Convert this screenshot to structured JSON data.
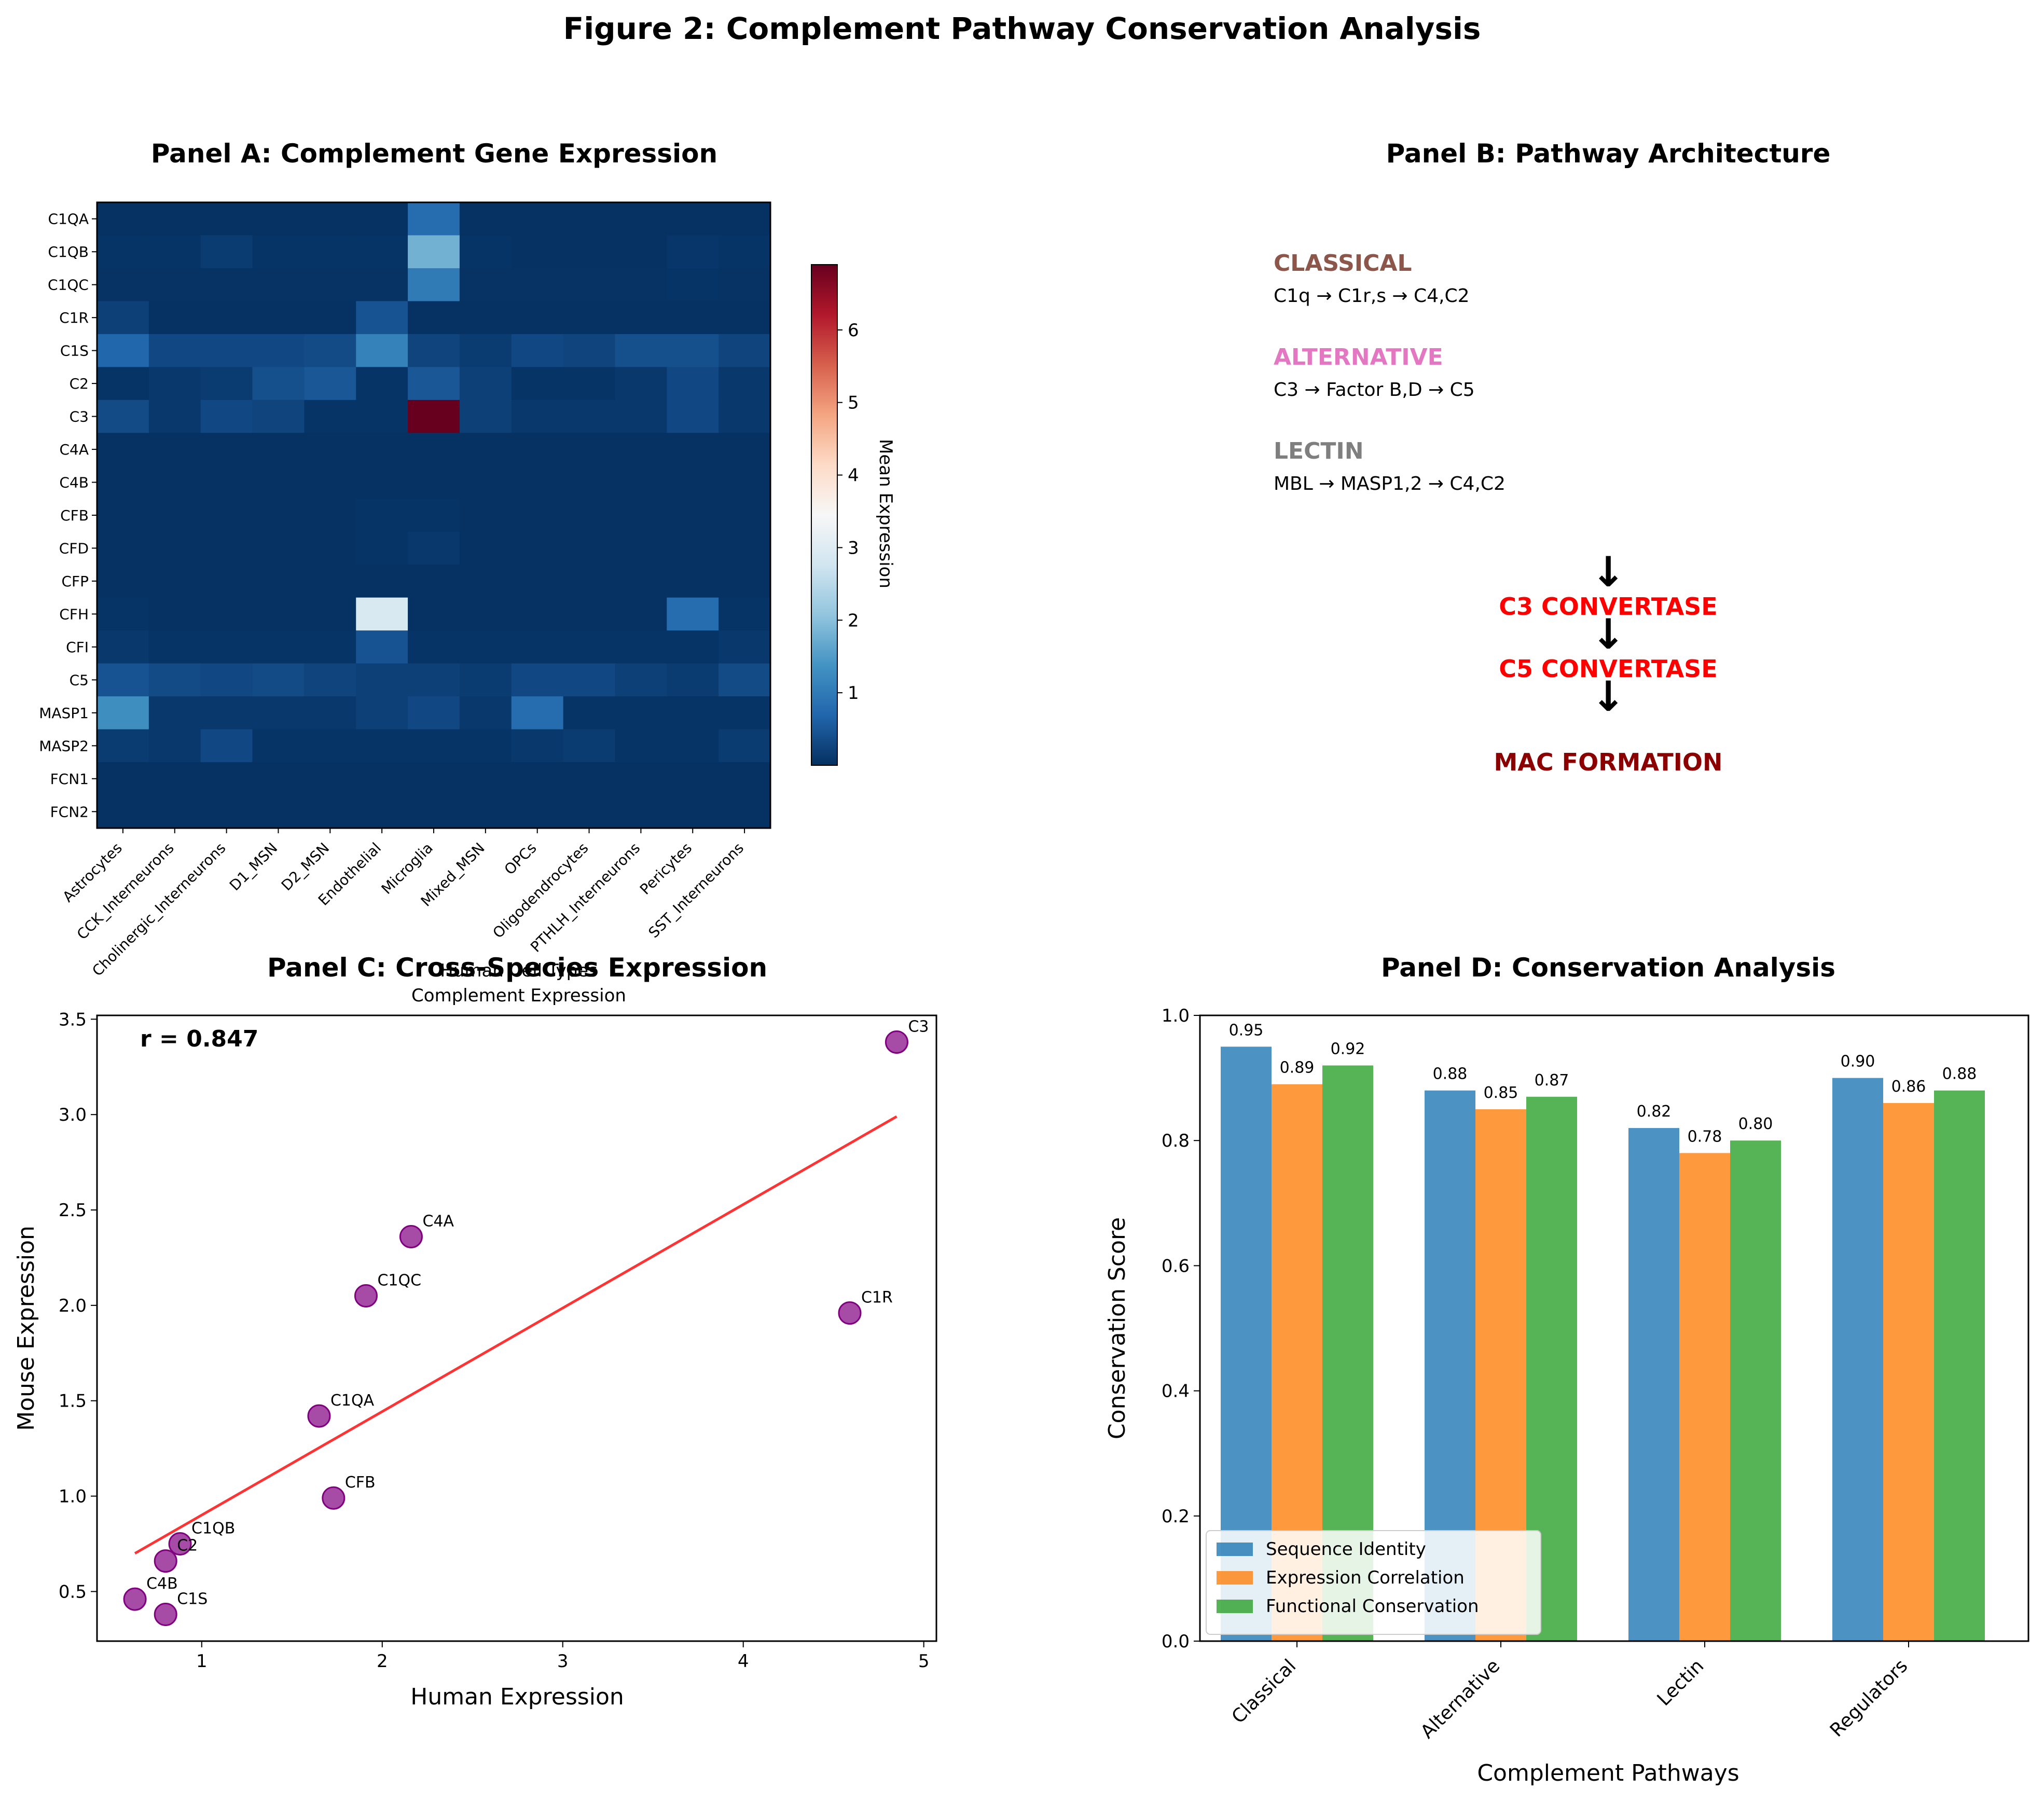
{
  "figure_title": "Figure 2: Complement Pathway Conservation Analysis",
  "panels": {
    "a": {
      "title": "Panel A: Complement Gene Expression",
      "xlabel_line1": "Human Cell Types",
      "xlabel_line2": "Complement Expression",
      "colorbar_label": "Mean Expression"
    },
    "b": {
      "title": "Panel B: Pathway Architecture",
      "classical_name": "CLASSICAL",
      "classical_steps": "C1q → C1r,s → C4,C2",
      "alternative_name": "ALTERNATIVE",
      "alternative_steps": "C3 → Factor B,D → C5",
      "lectin_name": "LECTIN",
      "lectin_steps": "MBL → MASP1,2 → C4,C2",
      "arrow": "↓",
      "c3_convertase": "C3 CONVERTASE",
      "c5_convertase": "C5 CONVERTASE",
      "mac_formation": "MAC FORMATION"
    },
    "c": {
      "title": "Panel C: Cross-Species Expression",
      "xlabel": "Human Expression",
      "ylabel": "Mouse Expression",
      "r_label": "r = 0.847"
    },
    "d": {
      "title": "Panel D: Conservation Analysis",
      "xlabel": "Complement Pathways",
      "ylabel": "Conservation Score"
    }
  },
  "colors": {
    "classical": "#8c564b",
    "alternative": "#e377c2",
    "lectin": "#7f7f7f",
    "convertase": "#ff0000",
    "mac": "#8b0000",
    "scatter_point": "#800080",
    "fit_line": "#ff0000",
    "series": [
      "#1f77b4",
      "#ff7f0e",
      "#2ca02c"
    ]
  },
  "chart_data": [
    {
      "type": "heatmap",
      "title": "Panel A: Complement Gene Expression",
      "rows": [
        "C1QA",
        "C1QB",
        "C1QC",
        "C1R",
        "C1S",
        "C2",
        "C3",
        "C4A",
        "C4B",
        "CFB",
        "CFD",
        "CFP",
        "CFH",
        "CFI",
        "C5",
        "MASP1",
        "MASP2",
        "FCN1",
        "FCN2"
      ],
      "columns": [
        "Astrocytes",
        "CCK_Interneurons",
        "Cholinergic_Interneurons",
        "D1_MSN",
        "D2_MSN",
        "Endothelial",
        "Microglia",
        "Mixed_MSN",
        "OPCs",
        "Oligodendrocytes",
        "PTHLH_Interneurons",
        "Pericytes",
        "SST_Interneurons"
      ],
      "values": [
        [
          0.02,
          0.02,
          0.02,
          0.02,
          0.02,
          0.02,
          0.8,
          0.02,
          0.02,
          0.02,
          0.02,
          0.02,
          0.02
        ],
        [
          0.05,
          0.05,
          0.15,
          0.05,
          0.05,
          0.05,
          1.8,
          0.05,
          0.02,
          0.02,
          0.02,
          0.08,
          0.05
        ],
        [
          0.03,
          0.03,
          0.03,
          0.03,
          0.03,
          0.03,
          1.0,
          0.03,
          0.03,
          0.03,
          0.03,
          0.05,
          0.03
        ],
        [
          0.2,
          0.02,
          0.02,
          0.02,
          0.02,
          0.45,
          0.02,
          0.02,
          0.02,
          0.02,
          0.02,
          0.02,
          0.02
        ],
        [
          0.7,
          0.3,
          0.3,
          0.3,
          0.35,
          1.1,
          0.25,
          0.15,
          0.3,
          0.25,
          0.4,
          0.4,
          0.25
        ],
        [
          0.05,
          0.1,
          0.15,
          0.4,
          0.5,
          0.05,
          0.5,
          0.2,
          0.05,
          0.05,
          0.1,
          0.3,
          0.1
        ],
        [
          0.35,
          0.1,
          0.3,
          0.25,
          0.05,
          0.05,
          6.9,
          0.2,
          0.1,
          0.1,
          0.1,
          0.3,
          0.1
        ],
        [
          0.02,
          0.02,
          0.02,
          0.02,
          0.02,
          0.02,
          0.02,
          0.02,
          0.02,
          0.02,
          0.02,
          0.02,
          0.02
        ],
        [
          0.02,
          0.02,
          0.02,
          0.02,
          0.02,
          0.02,
          0.02,
          0.02,
          0.02,
          0.02,
          0.02,
          0.02,
          0.02
        ],
        [
          0.02,
          0.02,
          0.02,
          0.02,
          0.02,
          0.05,
          0.05,
          0.02,
          0.02,
          0.02,
          0.02,
          0.02,
          0.02
        ],
        [
          0.02,
          0.02,
          0.02,
          0.02,
          0.02,
          0.05,
          0.1,
          0.02,
          0.02,
          0.02,
          0.02,
          0.02,
          0.02
        ],
        [
          0.02,
          0.02,
          0.02,
          0.02,
          0.02,
          0.02,
          0.02,
          0.02,
          0.02,
          0.02,
          0.02,
          0.02,
          0.02
        ],
        [
          0.05,
          0.02,
          0.02,
          0.02,
          0.02,
          2.9,
          0.02,
          0.02,
          0.02,
          0.02,
          0.02,
          0.8,
          0.05
        ],
        [
          0.1,
          0.05,
          0.05,
          0.05,
          0.05,
          0.45,
          0.05,
          0.05,
          0.05,
          0.05,
          0.05,
          0.05,
          0.1
        ],
        [
          0.45,
          0.35,
          0.3,
          0.35,
          0.25,
          0.2,
          0.2,
          0.15,
          0.3,
          0.3,
          0.2,
          0.15,
          0.35
        ],
        [
          1.3,
          0.1,
          0.1,
          0.1,
          0.1,
          0.2,
          0.3,
          0.1,
          0.8,
          0.05,
          0.05,
          0.05,
          0.05
        ],
        [
          0.15,
          0.1,
          0.3,
          0.05,
          0.05,
          0.05,
          0.05,
          0.05,
          0.1,
          0.15,
          0.05,
          0.05,
          0.15
        ],
        [
          0.02,
          0.02,
          0.02,
          0.02,
          0.02,
          0.02,
          0.02,
          0.02,
          0.02,
          0.02,
          0.02,
          0.02,
          0.02
        ],
        [
          0.02,
          0.02,
          0.02,
          0.02,
          0.02,
          0.02,
          0.02,
          0.02,
          0.02,
          0.02,
          0.02,
          0.02,
          0.02
        ]
      ],
      "colorbar": {
        "label": "Mean Expression",
        "range": [
          0,
          6.9
        ],
        "ticks": [
          1,
          2,
          3,
          4,
          5,
          6
        ],
        "colormap": "RdBu_r"
      },
      "xlabel": "Human Cell Types\nComplement Expression"
    },
    {
      "type": "scatter",
      "title": "Panel C: Cross-Species Expression",
      "xlabel": "Human Expression",
      "ylabel": "Mouse Expression",
      "xlim": [
        0.42,
        5.07
      ],
      "ylim": [
        0.24,
        3.52
      ],
      "xticks": [
        1,
        2,
        3,
        4,
        5
      ],
      "yticks": [
        0.5,
        1.0,
        1.5,
        2.0,
        2.5,
        3.0,
        3.5
      ],
      "points": [
        {
          "label": "C3",
          "x": 4.85,
          "y": 3.38
        },
        {
          "label": "C4A",
          "x": 2.16,
          "y": 2.36
        },
        {
          "label": "C1QC",
          "x": 1.91,
          "y": 2.05
        },
        {
          "label": "C1R",
          "x": 4.59,
          "y": 1.96
        },
        {
          "label": "C1QA",
          "x": 1.65,
          "y": 1.42
        },
        {
          "label": "CFB",
          "x": 1.73,
          "y": 0.99
        },
        {
          "label": "C1QB",
          "x": 0.88,
          "y": 0.75
        },
        {
          "label": "C2",
          "x": 0.8,
          "y": 0.66
        },
        {
          "label": "C4B",
          "x": 0.63,
          "y": 0.46
        },
        {
          "label": "C1S",
          "x": 0.8,
          "y": 0.38
        }
      ],
      "fit_line": {
        "x": [
          0.63,
          4.85
        ],
        "y": [
          0.7,
          2.99
        ]
      },
      "annotation": "r = 0.847"
    },
    {
      "type": "bar",
      "title": "Panel D: Conservation Analysis",
      "xlabel": "Complement Pathways",
      "ylabel": "Conservation Score",
      "categories": [
        "Classical",
        "Alternative",
        "Lectin",
        "Regulators"
      ],
      "series": [
        {
          "name": "Sequence Identity",
          "values": [
            0.95,
            0.88,
            0.82,
            0.9
          ]
        },
        {
          "name": "Expression Correlation",
          "values": [
            0.89,
            0.85,
            0.78,
            0.86
          ]
        },
        {
          "name": "Functional Conservation",
          "values": [
            0.92,
            0.87,
            0.8,
            0.88
          ]
        }
      ],
      "value_labels": [
        [
          "0.95",
          "0.88",
          "0.82",
          "0.90"
        ],
        [
          "0.89",
          "0.85",
          "0.78",
          "0.86"
        ],
        [
          "0.92",
          "0.87",
          "0.80",
          "0.88"
        ]
      ],
      "ylim": [
        0,
        1.0
      ],
      "yticks": [
        0.0,
        0.2,
        0.4,
        0.6,
        0.8,
        1.0
      ],
      "ytick_labels": [
        "0.0",
        "0.2",
        "0.4",
        "0.6",
        "0.8",
        "1.0"
      ],
      "legend": "lower-left",
      "grid": false
    }
  ]
}
